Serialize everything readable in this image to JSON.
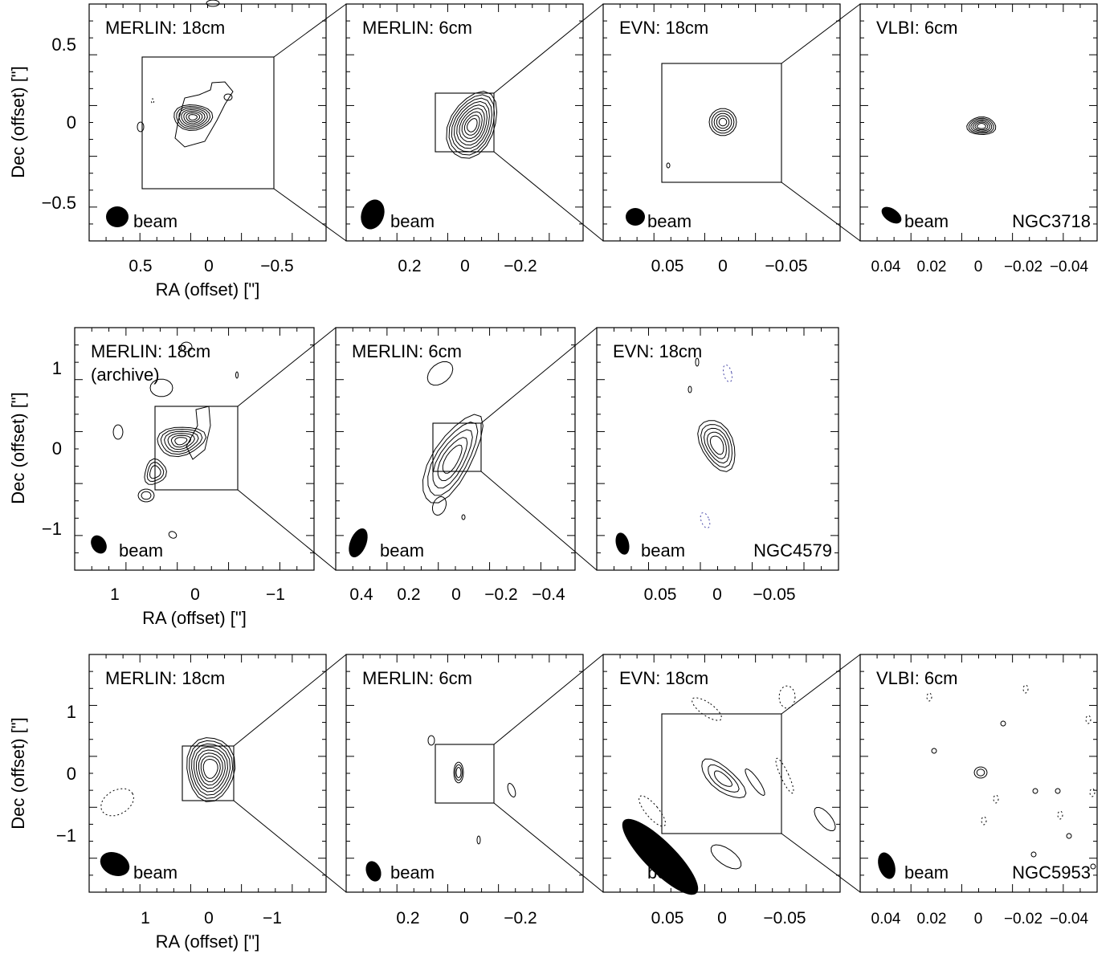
{
  "chart_data": [
    {
      "type": "contour",
      "source": "NGC3718",
      "ylabel": "Dec (offset) [\"]",
      "xlabel": "RA (offset) [\"]",
      "panels": [
        {
          "title": "MERLIN: 18cm",
          "beam_label": "beam",
          "xticks": [
            "0.5",
            "0",
            "−0.5"
          ],
          "yticks": [
            "0.5",
            "0",
            "−0.5"
          ],
          "xlim": [
            0.75,
            -0.75
          ],
          "ylim": [
            -0.75,
            0.75
          ]
        },
        {
          "title": "MERLIN:  6cm",
          "beam_label": "beam",
          "xticks": [
            "0.2",
            "0",
            "−0.2"
          ],
          "xlim": [
            0.4,
            -0.4
          ],
          "ylim": [
            -0.4,
            0.4
          ]
        },
        {
          "title": "EVN: 18cm",
          "beam_label": "beam",
          "xticks": [
            "0.05",
            "0",
            "−0.05"
          ],
          "xlim": [
            0.1,
            -0.1
          ],
          "ylim": [
            -0.1,
            0.1
          ]
        },
        {
          "title": "VLBI: 6cm",
          "beam_label": "beam",
          "source_label": "NGC3718",
          "xticks": [
            "0.04",
            "0.02",
            "0",
            "−0.02",
            "−0.04"
          ],
          "xlim": [
            0.05,
            -0.05
          ],
          "ylim": [
            -0.05,
            0.05
          ]
        }
      ]
    },
    {
      "type": "contour",
      "source": "NGC4579",
      "ylabel": "Dec (offset) [\"]",
      "xlabel": "RA (offset) [\"]",
      "panels": [
        {
          "title": "MERLIN: 18cm",
          "subtitle": "(archive)",
          "beam_label": "beam",
          "xticks": [
            "1",
            "0",
            "−1"
          ],
          "yticks": [
            "1",
            "0",
            "−1"
          ],
          "xlim": [
            1.5,
            -1.5
          ],
          "ylim": [
            -1.5,
            1.5
          ]
        },
        {
          "title": "MERLIN:  6cm",
          "beam_label": "beam",
          "xticks": [
            "0.4",
            "0.2",
            "0",
            "−0.2",
            "−0.4"
          ],
          "xlim": [
            0.5,
            -0.5
          ],
          "ylim": [
            -0.5,
            0.5
          ]
        },
        {
          "title": "EVN: 18cm",
          "beam_label": "beam",
          "source_label": "NGC4579",
          "xticks": [
            "0.05",
            "0",
            "−0.05"
          ],
          "xlim": [
            0.1,
            -0.1
          ],
          "ylim": [
            -0.1,
            0.1
          ]
        }
      ]
    },
    {
      "type": "contour",
      "source": "NGC5953",
      "ylabel": "Dec (offset) [\"]",
      "xlabel": "RA (offset) [\"]",
      "panels": [
        {
          "title": "MERLIN: 18cm",
          "beam_label": "beam",
          "xticks": [
            "1",
            "0",
            "−1"
          ],
          "yticks": [
            "1",
            "0",
            "−1"
          ],
          "xlim": [
            1.9,
            -1.9
          ],
          "ylim": [
            -1.9,
            1.9
          ]
        },
        {
          "title": "MERLIN:  6cm",
          "beam_label": "beam",
          "xticks": [
            "0.2",
            "0",
            "−0.2"
          ],
          "xlim": [
            0.4,
            -0.4
          ],
          "ylim": [
            -0.4,
            0.4
          ]
        },
        {
          "title": "EVN: 18cm",
          "beam_label": "beam",
          "xticks": [
            "0.05",
            "0",
            "−0.05"
          ],
          "xlim": [
            0.1,
            -0.1
          ],
          "ylim": [
            -0.1,
            0.1
          ]
        },
        {
          "title": "VLBI: 6cm",
          "beam_label": "beam",
          "source_label": "NGC5953",
          "xticks": [
            "0.04",
            "0.02",
            "0",
            "−0.02",
            "−0.04"
          ],
          "xlim": [
            0.05,
            -0.05
          ],
          "ylim": [
            -0.05,
            0.05
          ]
        }
      ]
    }
  ],
  "colors": {
    "ink": "#000000",
    "negative_contour": "#4a4aa8",
    "background": "#ffffff"
  }
}
